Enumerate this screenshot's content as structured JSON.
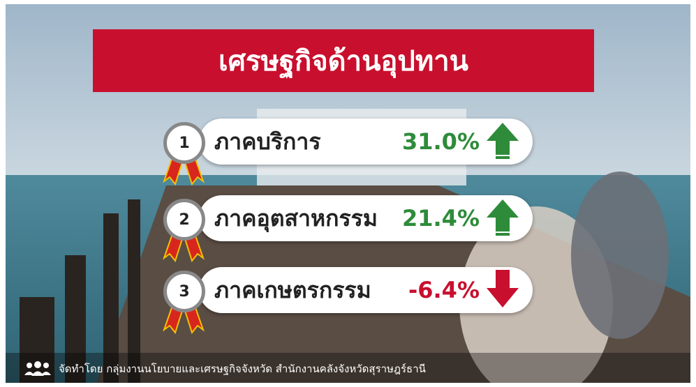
{
  "header": {
    "title": "เศรษฐกิจด้านอุปทาน"
  },
  "items": [
    {
      "rank": 1,
      "label": "ภาคบริการ",
      "value": "31.0%",
      "direction": "up",
      "color": "#2e8b3a"
    },
    {
      "rank": 2,
      "label": "ภาคอุตสาหกรรม",
      "value": "21.4%",
      "direction": "up",
      "color": "#2e8b3a"
    },
    {
      "rank": 3,
      "label": "ภาคเกษตรกรรม",
      "value": "-6.4%",
      "direction": "down",
      "color": "#c8102e"
    }
  ],
  "footer": {
    "credit": "จัดทำโดย กลุ่มงานนโยบายและเศรษฐกิจจังหวัด สำนักงานคลังจังหวัดสุราษฎร์ธานี"
  }
}
